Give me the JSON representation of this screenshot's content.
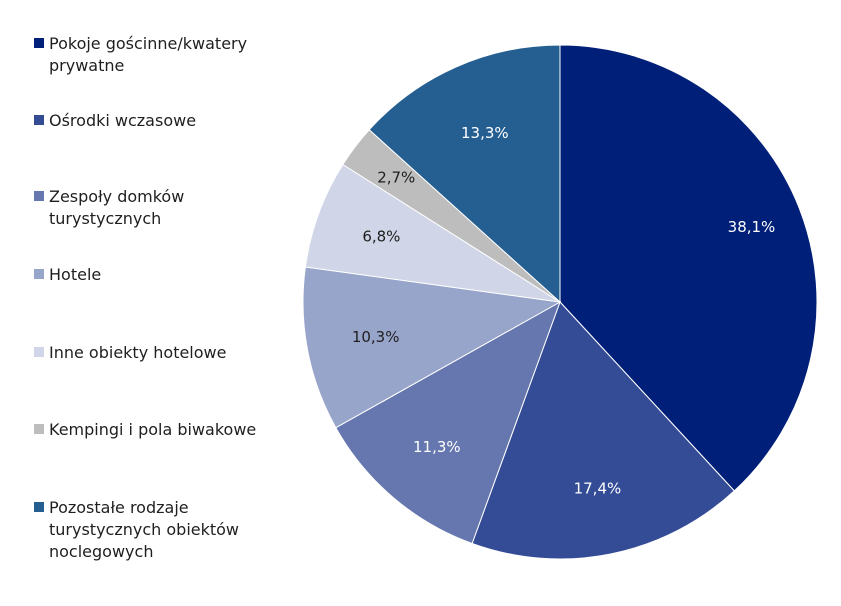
{
  "chart_data": {
    "type": "pie",
    "title": "",
    "slices": [
      {
        "label": "Pokoje gościnne/kwatery prywatne",
        "value": 38.1,
        "display": "38,1%",
        "color": "#001F78",
        "label_color": "#ffffff"
      },
      {
        "label": "Ośrodki wczasowe",
        "value": 17.4,
        "display": "17,4%",
        "color": "#344B96",
        "label_color": "#ffffff"
      },
      {
        "label": "Zespoły domków turystycznych",
        "value": 11.3,
        "display": "11,3%",
        "color": "#6577AE",
        "label_color": "#ffffff"
      },
      {
        "label": "Hotele",
        "value": 10.3,
        "display": "10,3%",
        "color": "#98A5CB",
        "label_color": "#1f1f1f"
      },
      {
        "label": "Inne obiekty hotelowe",
        "value": 6.8,
        "display": "6,8%",
        "color": "#D0D5E7",
        "label_color": "#1f1f1f"
      },
      {
        "label": "Kempingi i pola biwakowe",
        "value": 2.7,
        "display": "2,7%",
        "color": "#BDBDBD",
        "label_color": "#1f1f1f"
      },
      {
        "label": "Pozostałe rodzaje turystycznych obiektów noclegowych",
        "value": 13.3,
        "display": "13,3%",
        "color": "#255F92",
        "label_color": "#ffffff"
      }
    ],
    "legend_position": "left",
    "start_angle": "12 o'clock",
    "direction": "clockwise"
  },
  "legend": {
    "items": [
      {
        "text": "Pokoje gościnne/kwatery\nprywatne",
        "color": "#001F78"
      },
      {
        "text": "Ośrodki wczasowe",
        "color": "#344B96"
      },
      {
        "text": "Zespoły domków\nturystycznych",
        "color": "#6577AE"
      },
      {
        "text": "Hotele",
        "color": "#98A5CB"
      },
      {
        "text": "Inne obiekty hotelowe",
        "color": "#D0D5E7"
      },
      {
        "text": "Kempingi i pola biwakowe",
        "color": "#BDBDBD"
      },
      {
        "text": "Pozostałe rodzaje\nturystycznych obiektów\nnoclegowych",
        "color": "#255F92"
      }
    ]
  }
}
